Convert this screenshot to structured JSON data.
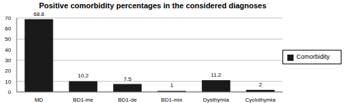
{
  "chart_data": {
    "type": "bar",
    "title": "Positive comorbidity percentages in the considered diagnoses",
    "categories": [
      "MD",
      "BD1-me",
      "BD1-de",
      "BD1-mix",
      "Dysthymia",
      "Cyclothymia"
    ],
    "series": [
      {
        "name": "Comorbidity",
        "color": "#1a1a1a",
        "values": [
          68.8,
          10.2,
          7.5,
          1,
          11.2,
          2
        ]
      }
    ],
    "ylim": [
      0,
      70
    ],
    "yticks": [
      0,
      10,
      20,
      30,
      40,
      50,
      60,
      70
    ],
    "grid": true,
    "legend": "right",
    "data_labels": true
  }
}
